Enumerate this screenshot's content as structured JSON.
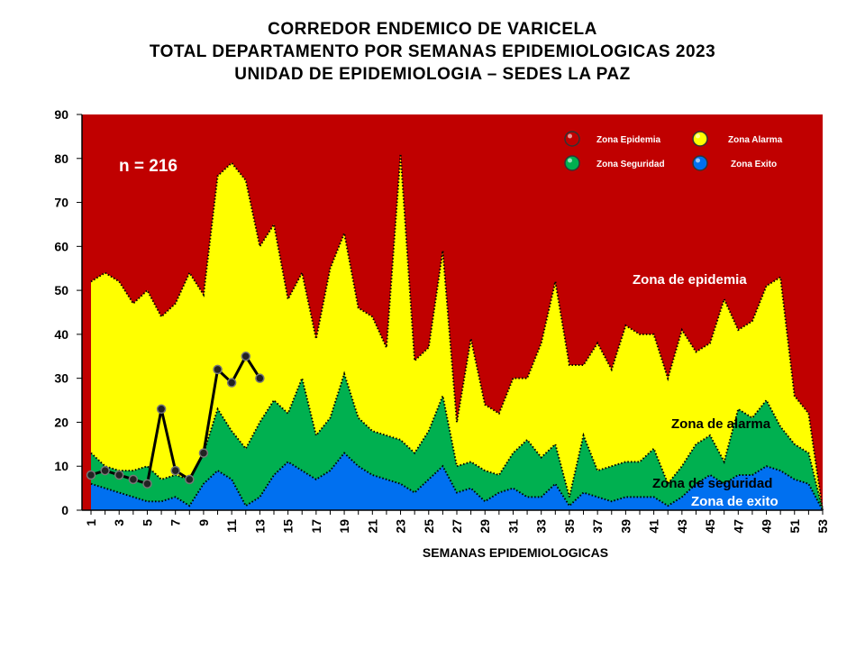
{
  "title_lines": [
    "CORREDOR ENDEMICO DE VARICELA",
    "TOTAL DEPARTAMENTO POR SEMANAS EPIDEMIOLOGICAS 2023",
    "UNIDAD DE EPIDEMIOLOGIA – SEDES LA PAZ"
  ],
  "colors": {
    "epidemia": "#c00000",
    "alarma": "#ffff00",
    "seguridad": "#00b050",
    "exito": "#0070f0",
    "observed": "#000000"
  },
  "chart_data": {
    "type": "area",
    "xlabel": "SEMANAS EPIDEMIOLOGICAS",
    "ylabel": "",
    "xlim": [
      1,
      53
    ],
    "ylim": [
      0,
      90
    ],
    "y_ticks": [
      0,
      10,
      20,
      30,
      40,
      50,
      60,
      70,
      80,
      90
    ],
    "x_tick_labels": [
      "1",
      "3",
      "5",
      "7",
      "9",
      "11",
      "13",
      "15",
      "17",
      "19",
      "21",
      "23",
      "25",
      "27",
      "29",
      "31",
      "33",
      "35",
      "37",
      "39",
      "41",
      "43",
      "45",
      "47",
      "49",
      "51",
      "53"
    ],
    "x": [
      1,
      2,
      3,
      4,
      5,
      6,
      7,
      8,
      9,
      10,
      11,
      12,
      13,
      14,
      15,
      16,
      17,
      18,
      19,
      20,
      21,
      22,
      23,
      24,
      25,
      26,
      27,
      28,
      29,
      30,
      31,
      32,
      33,
      34,
      35,
      36,
      37,
      38,
      39,
      40,
      41,
      42,
      43,
      44,
      45,
      46,
      47,
      48,
      49,
      50,
      51,
      52,
      53
    ],
    "zones": [
      {
        "name": "Zona Exito",
        "values": [
          6,
          5,
          4,
          3,
          2,
          2,
          3,
          1,
          6,
          9,
          7,
          1,
          3,
          8,
          11,
          9,
          7,
          9,
          13,
          10,
          8,
          7,
          6,
          4,
          7,
          10,
          4,
          5,
          2,
          4,
          5,
          3,
          3,
          6,
          1,
          4,
          3,
          2,
          3,
          3,
          3,
          1,
          3,
          6,
          8,
          6,
          8,
          8,
          10,
          9,
          7,
          6,
          0
        ]
      },
      {
        "name": "Zona Seguridad",
        "values": [
          13,
          10,
          9,
          9,
          10,
          7,
          8,
          7,
          13,
          23,
          18,
          14,
          20,
          25,
          22,
          30,
          17,
          21,
          31,
          21,
          18,
          17,
          16,
          13,
          18,
          26,
          10,
          11,
          9,
          8,
          13,
          16,
          12,
          15,
          3,
          17,
          9,
          10,
          11,
          11,
          14,
          6,
          10,
          15,
          17,
          11,
          23,
          21,
          25,
          19,
          15,
          13,
          0
        ]
      },
      {
        "name": "Zona Alarma",
        "values": [
          52,
          54,
          52,
          47,
          50,
          44,
          47,
          54,
          49,
          76,
          79,
          75,
          60,
          65,
          48,
          54,
          39,
          55,
          63,
          46,
          44,
          37,
          81,
          34,
          37,
          59,
          20,
          39,
          24,
          22,
          30,
          30,
          38,
          52,
          33,
          33,
          38,
          32,
          42,
          40,
          40,
          30,
          41,
          36,
          38,
          48,
          41,
          43,
          51,
          53,
          26,
          22,
          0
        ]
      }
    ],
    "series": [
      {
        "name": "",
        "x": [
          1,
          2,
          3,
          4,
          5,
          6,
          7,
          8,
          9,
          10,
          11,
          12,
          13
        ],
        "values": [
          8,
          9,
          8,
          7,
          6,
          23,
          9,
          7,
          13,
          32,
          29,
          35,
          30
        ]
      }
    ],
    "legend": {
      "placement": "top-right",
      "entries": [
        {
          "label": "Zona Epidemia",
          "color": "#c00000"
        },
        {
          "label": "Zona Alarma",
          "color": "#ffff00"
        },
        {
          "label": "Zona Seguridad",
          "color": "#00b050"
        },
        {
          "label": "Zona Exito",
          "color": "#0070f0"
        }
      ]
    },
    "annotations": {
      "n": "n = 216",
      "epidemia": "Zona de epidemia",
      "alarma": "Zona de alarma",
      "seguridad": "Zona de  seguridad",
      "exito": "Zona de exito"
    },
    "grid": false
  }
}
